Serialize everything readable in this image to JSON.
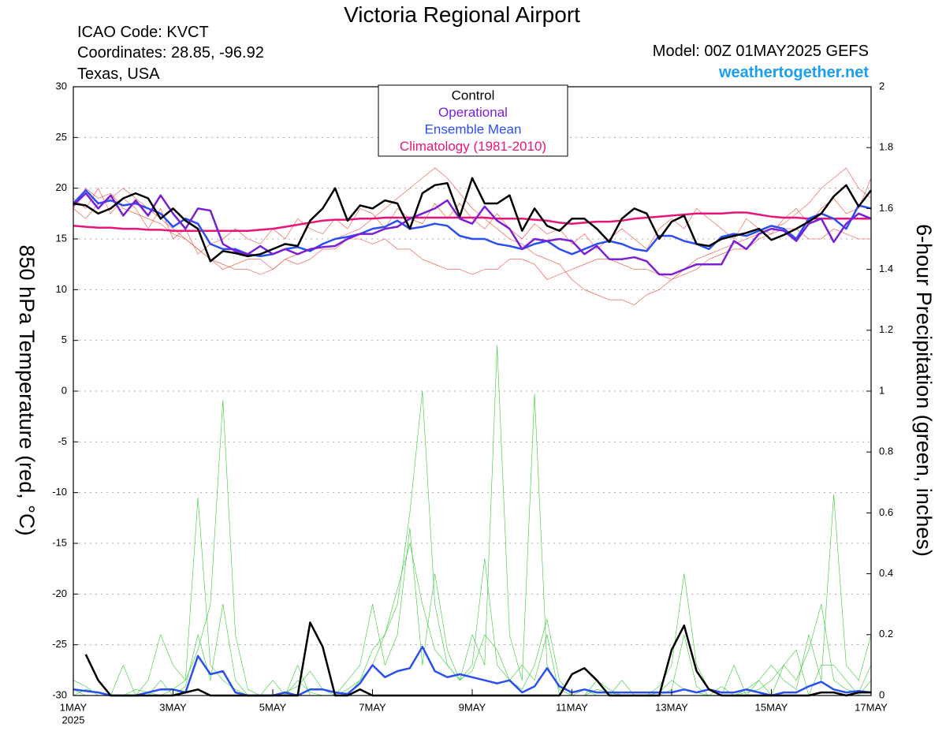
{
  "chart_data": {
    "type": "line",
    "title": "Victoria Regional Airport",
    "info_left": [
      "ICAO Code: KVCT",
      "Coordinates: 28.85, -96.92",
      "Texas, USA"
    ],
    "model": "Model: 00Z 01MAY2025 GEFS",
    "site": "weathertogether.net",
    "ylabel": "850 hPa Temperature (red, °C)",
    "y2label": "6-hour Precipitation (green, inches)",
    "x": [
      1,
      1.25,
      1.5,
      1.75,
      2,
      2.25,
      2.5,
      2.75,
      3,
      3.25,
      3.5,
      3.75,
      4,
      4.25,
      4.5,
      4.75,
      5,
      5.25,
      5.5,
      5.75,
      6,
      6.25,
      6.5,
      6.75,
      7,
      7.25,
      7.5,
      7.75,
      8,
      8.25,
      8.5,
      8.75,
      9,
      9.25,
      9.5,
      9.75,
      10,
      10.25,
      10.5,
      10.75,
      11,
      11.25,
      11.5,
      11.75,
      12,
      12.25,
      12.5,
      12.75,
      13,
      13.25,
      13.5,
      13.75,
      14,
      14.25,
      14.5,
      14.75,
      15,
      15.25,
      15.5,
      15.75,
      16,
      16.25,
      16.5,
      16.75,
      17
    ],
    "xlim": [
      1,
      17
    ],
    "xticks": [
      {
        "value": 1,
        "label": "1MAY"
      },
      {
        "value": 3,
        "label": "3MAY"
      },
      {
        "value": 5,
        "label": "5MAY"
      },
      {
        "value": 7,
        "label": "7MAY"
      },
      {
        "value": 9,
        "label": "9MAY"
      },
      {
        "value": 11,
        "label": "11MAY"
      },
      {
        "value": 13,
        "label": "13MAY"
      },
      {
        "value": 15,
        "label": "15MAY"
      },
      {
        "value": 17,
        "label": "17MAY"
      }
    ],
    "year_label": "2025",
    "ylim": [
      -30,
      30
    ],
    "yticks": [
      30,
      25,
      20,
      15,
      10,
      5,
      0,
      -5,
      -10,
      -15,
      -20,
      -25,
      -30
    ],
    "y2lim": [
      0,
      2
    ],
    "y2ticks": [
      2,
      1.8,
      1.6,
      1.4,
      1.2,
      1,
      0.8,
      0.6,
      0.4,
      0.2,
      0
    ],
    "grid": true,
    "series": [
      {
        "color": "#f04a3a",
        "linewidth": 0.6,
        "values": [
          18,
          20,
          19,
          19.5,
          18,
          17.5,
          17,
          16.5,
          15.5,
          15,
          14,
          13,
          12.5,
          12,
          12,
          11.5,
          12,
          13,
          13.5,
          14,
          14.5,
          15,
          15.5,
          16,
          17,
          18,
          19,
          20,
          21,
          22,
          21,
          19.5,
          18,
          17,
          16,
          15,
          14.5,
          13.5,
          13,
          12.5,
          11,
          10,
          9.5,
          9,
          9,
          8.5,
          9.5,
          10,
          11,
          12,
          13,
          13.5,
          14,
          14.5,
          15,
          15.5,
          16,
          16.5,
          17.5,
          18.5,
          20,
          21,
          22,
          20,
          19
        ]
      },
      {
        "color": "#f04a3a",
        "linewidth": 0.6,
        "values": [
          19,
          18,
          20,
          17.5,
          19,
          18,
          16,
          18,
          15,
          16,
          13.5,
          14.5,
          15,
          16,
          15,
          14.5,
          16,
          15,
          17,
          16,
          15.5,
          17,
          16,
          18,
          17.5,
          16,
          18,
          17,
          16.5,
          18.5,
          17,
          18.5,
          17,
          16,
          17.5,
          16,
          15,
          16.5,
          15.5,
          16,
          14.5,
          15.5,
          14,
          15,
          16,
          15,
          14,
          16,
          17,
          16,
          18,
          17,
          16,
          15,
          17,
          16,
          15.5,
          17,
          18,
          16.5,
          18,
          19,
          17.5,
          18,
          21
        ]
      },
      {
        "color": "#f04a3a",
        "linewidth": 0.6,
        "values": [
          18,
          17,
          18.5,
          19,
          20,
          19,
          18,
          17,
          16,
          15,
          14,
          13,
          12,
          12.5,
          13,
          13,
          12,
          13,
          12.5,
          13,
          14,
          14,
          15,
          15,
          14.5,
          15,
          14,
          14,
          13,
          12.5,
          12,
          12,
          11.5,
          12,
          12,
          13,
          13,
          12.5,
          11,
          11.5,
          12,
          12.5,
          13,
          13,
          12.5,
          12,
          12,
          11.5,
          11,
          11.5,
          12,
          13,
          13.5,
          14,
          14,
          15,
          15.5,
          16,
          16,
          15,
          15,
          16,
          15.5,
          15,
          15
        ]
      },
      {
        "color": "#33cc33",
        "linewidth": 0.6,
        "axis": "y2",
        "values": [
          0.05,
          0.03,
          0,
          0,
          0,
          0.02,
          0.01,
          0,
          0.02,
          0.05,
          0.15,
          0.3,
          0.97,
          0.2,
          0.02,
          0,
          0,
          0.01,
          0.03,
          0.08,
          0.02,
          0,
          0,
          0.05,
          0.1,
          0.2,
          0.35,
          0.5,
          0.3,
          0.15,
          0.1,
          0.05,
          0.08,
          0.2,
          0.15,
          0.05,
          0.02,
          0.1,
          0.25,
          0.05,
          0,
          0,
          0.02,
          0.01,
          0,
          0,
          0,
          0.03,
          0.1,
          0.4,
          0.1,
          0.02,
          0,
          0,
          0.01,
          0.02,
          0.05,
          0.1,
          0.05,
          0.15,
          0.3,
          0.05,
          0.02,
          0.01,
          0.1
        ]
      },
      {
        "color": "#33cc33",
        "linewidth": 0.6,
        "axis": "y2",
        "values": [
          0,
          0.02,
          0.01,
          0,
          0,
          0,
          0.05,
          0.2,
          0.1,
          0.05,
          0.65,
          0.1,
          0.05,
          0.02,
          0,
          0,
          0,
          0,
          0.05,
          0.01,
          0,
          0,
          0.02,
          0.05,
          0.15,
          0.2,
          0.3,
          0.6,
          1,
          0.3,
          0.1,
          0.05,
          0.2,
          0.1,
          1.15,
          0.2,
          0.05,
          0.99,
          0.1,
          0.02,
          0,
          0,
          0.05,
          0.02,
          0,
          0,
          0,
          0.01,
          0.05,
          0.02,
          0.01,
          0,
          0.03,
          0,
          0.02,
          0.05,
          0.1,
          0.05,
          0.02,
          0.2,
          0.05,
          0.66,
          0.1,
          0.05,
          0.2
        ]
      },
      {
        "color": "#33cc33",
        "linewidth": 0.6,
        "axis": "y2",
        "values": [
          0.02,
          0,
          0,
          0,
          0.1,
          0,
          0,
          0.05,
          0,
          0.03,
          0.2,
          0.05,
          0.3,
          0.05,
          0,
          0,
          0.05,
          0,
          0.1,
          0,
          0,
          0,
          0.05,
          0.1,
          0.3,
          0.1,
          0.2,
          0.55,
          0.1,
          0.4,
          0.15,
          0.05,
          0.1,
          0.45,
          0.1,
          0.05,
          0.1,
          0.05,
          0.2,
          0,
          0,
          0.02,
          0,
          0,
          0.05,
          0,
          0,
          0,
          0.02,
          0.2,
          0.03,
          0,
          0,
          0.1,
          0,
          0.05,
          0,
          0.1,
          0.15,
          0,
          0.1,
          0.1,
          0.05,
          0,
          0.05
        ]
      },
      {
        "name": "Climatology (1981-2010)",
        "color": "#e8157a",
        "linewidth": 2.5,
        "values": [
          16.3,
          16.2,
          16.1,
          16.1,
          16,
          16,
          15.9,
          15.9,
          15.8,
          15.8,
          15.8,
          15.8,
          15.8,
          15.8,
          15.8,
          15.9,
          16,
          16.2,
          16.4,
          16.6,
          16.8,
          16.9,
          16.9,
          17,
          17,
          17.1,
          17.1,
          17.1,
          17.1,
          17.1,
          17.1,
          17.1,
          17.1,
          17.1,
          17,
          17,
          17,
          16.9,
          16.8,
          16.6,
          16.5,
          16.6,
          16.7,
          16.7,
          16.8,
          17,
          17.1,
          17.2,
          17.3,
          17.4,
          17.5,
          17.5,
          17.5,
          17.6,
          17.6,
          17.4,
          17.2,
          17.1,
          17.1,
          17,
          17,
          17,
          17,
          17,
          17
        ]
      },
      {
        "name": "Ensemble Mean",
        "color": "#2a4ff0",
        "linewidth": 2.5,
        "values": [
          18.5,
          19.8,
          18.5,
          18.8,
          18.3,
          18.5,
          18,
          17.5,
          16.2,
          17,
          16.5,
          14.5,
          14,
          14,
          13.5,
          13.3,
          13.5,
          14,
          14.2,
          13.8,
          14.5,
          15,
          15.2,
          15.5,
          16,
          16.2,
          16.8,
          16,
          16.2,
          16.5,
          16.3,
          15.3,
          15,
          15,
          14.5,
          14.3,
          14,
          14.5,
          14.8,
          14,
          13.5,
          14,
          14.5,
          14.8,
          14.5,
          14,
          13.8,
          15.3,
          15.3,
          14.8,
          14.5,
          14,
          15.2,
          15.5,
          15.3,
          15.8,
          16.3,
          16,
          15,
          17,
          17.5,
          17,
          16,
          18.3,
          18
        ]
      },
      {
        "name": "Operational",
        "color": "#7a1fd6",
        "linewidth": 2.5,
        "values": [
          18.3,
          19.5,
          18,
          19.3,
          17.3,
          18.8,
          17.3,
          19.3,
          17.5,
          16,
          18,
          17.8,
          14.5,
          13.8,
          13.5,
          14.3,
          13.5,
          14,
          13.5,
          14,
          14.2,
          14.3,
          15,
          15.5,
          15.5,
          16,
          16.2,
          17,
          17.5,
          18,
          18.8,
          17,
          16.5,
          18.2,
          16.8,
          16,
          14,
          15,
          14.8,
          15,
          14.8,
          13.5,
          14.3,
          13,
          13,
          13.2,
          12.8,
          11.5,
          11.5,
          12,
          12.5,
          12.5,
          12.5,
          14.8,
          14,
          15.5,
          16,
          15.8,
          14.8,
          16.5,
          17,
          14.7,
          16.5,
          17.5,
          17
        ]
      },
      {
        "name": "Control",
        "color": "#000000",
        "linewidth": 2.5,
        "values": [
          18.5,
          18.3,
          17.5,
          18,
          19,
          19.5,
          19,
          17,
          18,
          16.8,
          16,
          12.8,
          13.8,
          13.6,
          13.3,
          13.5,
          14,
          14.5,
          14.3,
          16.8,
          18,
          20,
          16.8,
          18.3,
          18,
          18.8,
          18.5,
          16,
          19.5,
          20.3,
          20.5,
          17.2,
          21,
          18.5,
          18.5,
          19.3,
          15.8,
          18,
          16.3,
          15.8,
          17,
          17,
          16,
          14.7,
          17,
          18,
          17.5,
          15,
          16.7,
          17.3,
          14.5,
          14.3,
          15,
          15.3,
          15.6,
          16,
          14.9,
          15.4,
          16,
          16.7,
          17.5,
          19.2,
          20.3,
          18.2,
          19.8
        ]
      },
      {
        "color": "#2a4ff0",
        "linewidth": 2.5,
        "axis": "y2",
        "values": [
          0.02,
          0.015,
          0.01,
          0,
          0,
          0,
          0.01,
          0.02,
          0.02,
          0.01,
          0.13,
          0.07,
          0.08,
          0.01,
          0,
          0,
          0,
          0.01,
          0,
          0.02,
          0.02,
          0.01,
          0.005,
          0.04,
          0.1,
          0.06,
          0.08,
          0.09,
          0.16,
          0.08,
          0.06,
          0.07,
          0.06,
          0.05,
          0.04,
          0.05,
          0.01,
          0.03,
          0.09,
          0.03,
          0.01,
          0.02,
          0.01,
          0.01,
          0.01,
          0.01,
          0.01,
          0.01,
          0.01,
          0.02,
          0.01,
          0.02,
          0.01,
          0.01,
          0.02,
          0.01,
          0,
          0.01,
          0.01,
          0.03,
          0.045,
          0.02,
          0.01,
          0.015,
          0.01
        ]
      },
      {
        "color": "#000000",
        "linewidth": 2.5,
        "axis": "y2",
        "values": [
          null,
          0.135,
          0.05,
          0,
          0,
          0,
          0,
          0,
          0,
          0.01,
          0.02,
          0,
          0,
          0,
          0,
          0,
          0,
          0,
          0,
          0.24,
          0.16,
          0,
          0,
          0.02,
          0,
          0,
          0,
          0,
          0,
          0,
          0,
          0,
          0,
          0,
          0,
          0,
          0,
          0,
          0,
          0,
          0.07,
          0.09,
          0.05,
          0,
          0,
          0,
          0,
          0,
          0.15,
          0.23,
          0.08,
          0.02,
          0,
          0,
          0,
          0,
          0,
          0,
          0,
          0,
          0.01,
          0.01,
          0,
          0.01,
          0.01
        ]
      }
    ]
  }
}
